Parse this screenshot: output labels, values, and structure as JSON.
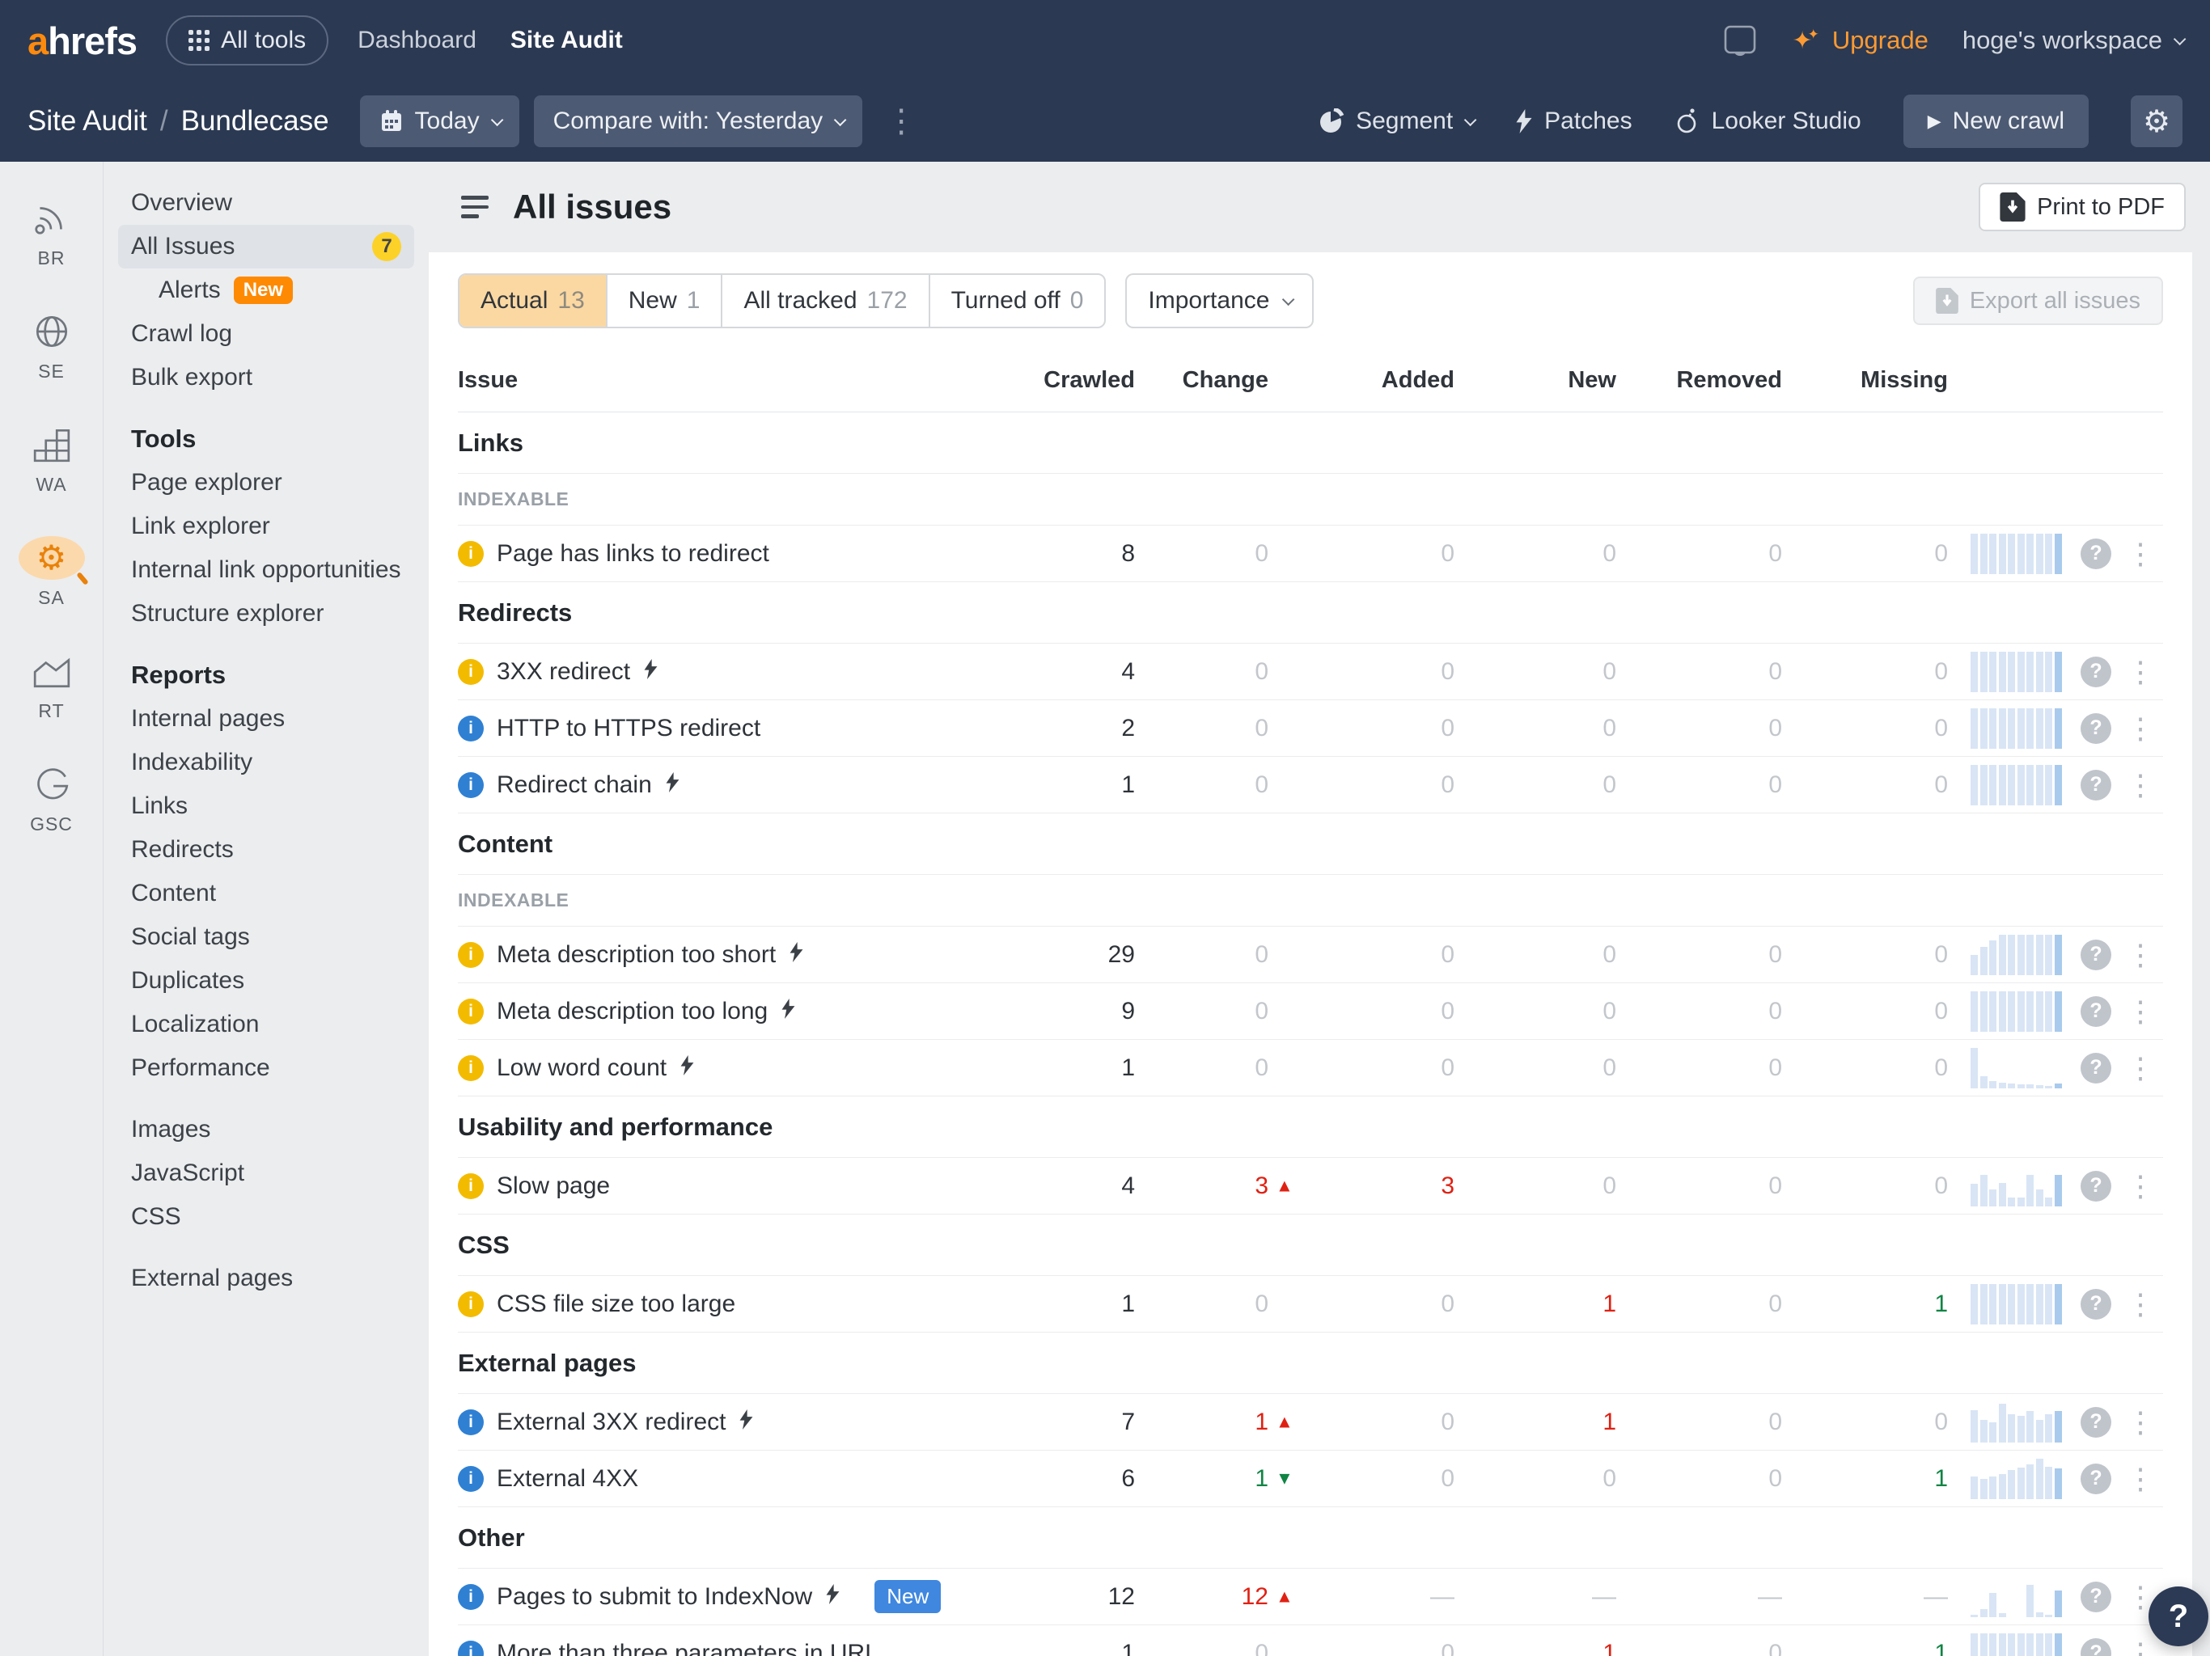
{
  "colors": {
    "accent_orange": "#fd8a0d",
    "red": "#df2114",
    "green": "#108443",
    "info_blue": "#2f80d3",
    "warning_yellow": "#f3bb00",
    "selected_tab": "#fbd8a2",
    "navy": "#2b3952",
    "spark_light": "#d9e5f5",
    "spark_dark": "#a9caec"
  },
  "topnav": {
    "logo_a": "a",
    "logo_rest": "hrefs",
    "all_tools": "All tools",
    "links": [
      {
        "label": "Dashboard",
        "active": false
      },
      {
        "label": "Site Audit",
        "active": true
      }
    ],
    "upgrade": "Upgrade",
    "workspace": "hoge's workspace"
  },
  "toolbar": {
    "crumb_app": "Site Audit",
    "crumb_sep": "/",
    "crumb_project": "Bundlecase",
    "date_button": "Today",
    "compare_button": "Compare with: Yesterday",
    "segment": "Segment",
    "patches": "Patches",
    "looker": "Looker Studio",
    "new_crawl": "New crawl"
  },
  "rail": {
    "items": [
      {
        "label": "BR",
        "icon": "radar"
      },
      {
        "label": "SE",
        "icon": "globe"
      },
      {
        "label": "WA",
        "icon": "steps"
      },
      {
        "label": "SA",
        "icon": "site-audit-gear",
        "active": true
      },
      {
        "label": "RT",
        "icon": "chart"
      },
      {
        "label": "GSC",
        "icon": "g-mark"
      }
    ]
  },
  "sidebar": {
    "groups": [
      {
        "items": [
          {
            "label": "Overview"
          },
          {
            "label": "All Issues",
            "badge": "7",
            "selected": true
          },
          {
            "label": "Alerts",
            "tag": "New",
            "indent": true
          },
          {
            "label": "Crawl log"
          },
          {
            "label": "Bulk export"
          }
        ]
      },
      {
        "heading": "Tools",
        "items": [
          {
            "label": "Page explorer"
          },
          {
            "label": "Link explorer"
          },
          {
            "label": "Internal link opportunities"
          },
          {
            "label": "Structure explorer"
          }
        ]
      },
      {
        "heading": "Reports",
        "items": [
          {
            "label": "Internal pages"
          },
          {
            "label": "Indexability"
          },
          {
            "label": "Links"
          },
          {
            "label": "Redirects"
          },
          {
            "label": "Content"
          },
          {
            "label": "Social tags"
          },
          {
            "label": "Duplicates"
          },
          {
            "label": "Localization"
          },
          {
            "label": "Performance"
          }
        ]
      },
      {
        "items": [
          {
            "label": "Images"
          },
          {
            "label": "JavaScript"
          },
          {
            "label": "CSS"
          }
        ]
      },
      {
        "items": [
          {
            "label": "External pages"
          }
        ]
      }
    ]
  },
  "page": {
    "title": "All issues",
    "print_button": "Print to PDF",
    "export_button": "Export all issues",
    "importance": "Importance",
    "tabs": [
      {
        "label": "Actual",
        "count": "13",
        "selected": true
      },
      {
        "label": "New",
        "count": "1",
        "selected": false
      },
      {
        "label": "All tracked",
        "count": "172",
        "selected": false
      },
      {
        "label": "Turned off",
        "count": "0",
        "selected": false
      }
    ]
  },
  "table": {
    "columns": [
      "Issue",
      "Crawled",
      "Change",
      "Added",
      "New",
      "Removed",
      "Missing"
    ],
    "blocks": [
      {
        "type": "section",
        "title": "Links"
      },
      {
        "type": "subheader",
        "title": "INDEXABLE"
      },
      {
        "type": "row",
        "severity": "warning",
        "label": "Page has links to redirect",
        "lightning": false,
        "crawled": {
          "v": "8",
          "c": "dark"
        },
        "change": {
          "v": "0",
          "c": "muted"
        },
        "added": {
          "v": "0",
          "c": "muted"
        },
        "new": {
          "v": "0",
          "c": "muted"
        },
        "removed": {
          "v": "0",
          "c": "muted"
        },
        "missing": {
          "v": "0",
          "c": "muted"
        },
        "spark": [
          1,
          1,
          1,
          1,
          1,
          1,
          1,
          1,
          1,
          1
        ]
      },
      {
        "type": "section",
        "title": "Redirects"
      },
      {
        "type": "row",
        "severity": "warning",
        "label": "3XX redirect",
        "lightning": true,
        "crawled": {
          "v": "4",
          "c": "dark"
        },
        "change": {
          "v": "0",
          "c": "muted"
        },
        "added": {
          "v": "0",
          "c": "muted"
        },
        "new": {
          "v": "0",
          "c": "muted"
        },
        "removed": {
          "v": "0",
          "c": "muted"
        },
        "missing": {
          "v": "0",
          "c": "muted"
        },
        "spark": [
          1,
          1,
          1,
          1,
          1,
          1,
          1,
          1,
          1,
          1
        ]
      },
      {
        "type": "row",
        "severity": "info",
        "label": "HTTP to HTTPS redirect",
        "lightning": false,
        "crawled": {
          "v": "2",
          "c": "dark"
        },
        "change": {
          "v": "0",
          "c": "muted"
        },
        "added": {
          "v": "0",
          "c": "muted"
        },
        "new": {
          "v": "0",
          "c": "muted"
        },
        "removed": {
          "v": "0",
          "c": "muted"
        },
        "missing": {
          "v": "0",
          "c": "muted"
        },
        "spark": [
          1,
          1,
          1,
          1,
          1,
          1,
          1,
          1,
          1,
          1
        ]
      },
      {
        "type": "row",
        "severity": "info",
        "label": "Redirect chain",
        "lightning": true,
        "crawled": {
          "v": "1",
          "c": "dark"
        },
        "change": {
          "v": "0",
          "c": "muted"
        },
        "added": {
          "v": "0",
          "c": "muted"
        },
        "new": {
          "v": "0",
          "c": "muted"
        },
        "removed": {
          "v": "0",
          "c": "muted"
        },
        "missing": {
          "v": "0",
          "c": "muted"
        },
        "spark": [
          1,
          1,
          1,
          1,
          1,
          1,
          1,
          1,
          1,
          1
        ]
      },
      {
        "type": "section",
        "title": "Content"
      },
      {
        "type": "subheader",
        "title": "INDEXABLE"
      },
      {
        "type": "row",
        "severity": "warning",
        "label": "Meta description too short",
        "lightning": true,
        "crawled": {
          "v": "29",
          "c": "dark"
        },
        "change": {
          "v": "0",
          "c": "muted"
        },
        "added": {
          "v": "0",
          "c": "muted"
        },
        "new": {
          "v": "0",
          "c": "muted"
        },
        "removed": {
          "v": "0",
          "c": "muted"
        },
        "missing": {
          "v": "0",
          "c": "muted"
        },
        "spark": [
          0.5,
          0.7,
          0.85,
          1,
          1,
          1,
          1,
          1,
          1,
          1
        ]
      },
      {
        "type": "row",
        "severity": "warning",
        "label": "Meta description too long",
        "lightning": true,
        "crawled": {
          "v": "9",
          "c": "dark"
        },
        "change": {
          "v": "0",
          "c": "muted"
        },
        "added": {
          "v": "0",
          "c": "muted"
        },
        "new": {
          "v": "0",
          "c": "muted"
        },
        "removed": {
          "v": "0",
          "c": "muted"
        },
        "missing": {
          "v": "0",
          "c": "muted"
        },
        "spark": [
          1,
          1,
          1,
          1,
          1,
          1,
          1,
          1,
          1,
          1
        ]
      },
      {
        "type": "row",
        "severity": "warning",
        "label": "Low word count",
        "lightning": true,
        "crawled": {
          "v": "1",
          "c": "dark"
        },
        "change": {
          "v": "0",
          "c": "muted"
        },
        "added": {
          "v": "0",
          "c": "muted"
        },
        "new": {
          "v": "0",
          "c": "muted"
        },
        "removed": {
          "v": "0",
          "c": "muted"
        },
        "missing": {
          "v": "0",
          "c": "muted"
        },
        "spark": [
          1,
          0.3,
          0.18,
          0.14,
          0.12,
          0.1,
          0.1,
          0.08,
          0.06,
          0.12
        ]
      },
      {
        "type": "section",
        "title": "Usability and performance"
      },
      {
        "type": "row",
        "severity": "warning",
        "label": "Slow page",
        "lightning": false,
        "crawled": {
          "v": "4",
          "c": "dark"
        },
        "change": {
          "v": "3",
          "c": "red",
          "dir": "up"
        },
        "added": {
          "v": "3",
          "c": "red"
        },
        "new": {
          "v": "0",
          "c": "muted"
        },
        "removed": {
          "v": "0",
          "c": "muted"
        },
        "missing": {
          "v": "0",
          "c": "muted"
        },
        "spark": [
          0.55,
          0.78,
          0.42,
          0.58,
          0.22,
          0.22,
          0.78,
          0.42,
          0.22,
          0.78
        ]
      },
      {
        "type": "section",
        "title": "CSS"
      },
      {
        "type": "row",
        "severity": "warning",
        "label": "CSS file size too large",
        "lightning": false,
        "crawled": {
          "v": "1",
          "c": "dark"
        },
        "change": {
          "v": "0",
          "c": "muted"
        },
        "added": {
          "v": "0",
          "c": "muted"
        },
        "new": {
          "v": "1",
          "c": "red"
        },
        "removed": {
          "v": "0",
          "c": "muted"
        },
        "missing": {
          "v": "1",
          "c": "green"
        },
        "spark": [
          1,
          1,
          1,
          1,
          1,
          1,
          1,
          1,
          1,
          1
        ]
      },
      {
        "type": "section",
        "title": "External pages"
      },
      {
        "type": "row",
        "severity": "info",
        "label": "External 3XX redirect",
        "lightning": true,
        "crawled": {
          "v": "7",
          "c": "dark"
        },
        "change": {
          "v": "1",
          "c": "red",
          "dir": "up"
        },
        "added": {
          "v": "0",
          "c": "muted"
        },
        "new": {
          "v": "1",
          "c": "red"
        },
        "removed": {
          "v": "0",
          "c": "muted"
        },
        "missing": {
          "v": "0",
          "c": "muted"
        },
        "spark": [
          0.8,
          0.55,
          0.5,
          0.95,
          0.7,
          0.65,
          0.78,
          0.55,
          0.7,
          0.78
        ]
      },
      {
        "type": "row",
        "severity": "info",
        "label": "External 4XX",
        "lightning": false,
        "crawled": {
          "v": "6",
          "c": "dark"
        },
        "change": {
          "v": "1",
          "c": "green",
          "dir": "down"
        },
        "added": {
          "v": "0",
          "c": "muted"
        },
        "new": {
          "v": "0",
          "c": "muted"
        },
        "removed": {
          "v": "0",
          "c": "muted"
        },
        "missing": {
          "v": "1",
          "c": "green"
        },
        "spark": [
          0.55,
          0.5,
          0.55,
          0.62,
          0.72,
          0.78,
          0.85,
          1,
          0.8,
          0.75
        ]
      },
      {
        "type": "section",
        "title": "Other"
      },
      {
        "type": "row",
        "severity": "info",
        "label": "Pages to submit to IndexNow",
        "lightning": true,
        "badge": "New",
        "crawled": {
          "v": "12",
          "c": "dark"
        },
        "change": {
          "v": "12",
          "c": "red",
          "dir": "up"
        },
        "added": {
          "v": "—",
          "c": "muted"
        },
        "new": {
          "v": "—",
          "c": "muted"
        },
        "removed": {
          "v": "—",
          "c": "muted"
        },
        "missing": {
          "v": "—",
          "c": "muted"
        },
        "spark": [
          0.06,
          0.2,
          0.6,
          0.1,
          0,
          0,
          0.8,
          0.12,
          0.05,
          0.65
        ]
      },
      {
        "type": "row",
        "severity": "info",
        "label": "More than three parameters in URL",
        "lightning": false,
        "crawled": {
          "v": "1",
          "c": "dark"
        },
        "change": {
          "v": "0",
          "c": "muted"
        },
        "added": {
          "v": "0",
          "c": "muted"
        },
        "new": {
          "v": "1",
          "c": "red"
        },
        "removed": {
          "v": "0",
          "c": "muted"
        },
        "missing": {
          "v": "1",
          "c": "green"
        },
        "spark": [
          1,
          1,
          1,
          1,
          1,
          1,
          1,
          1,
          1,
          1
        ]
      }
    ]
  },
  "floating_help": "?"
}
